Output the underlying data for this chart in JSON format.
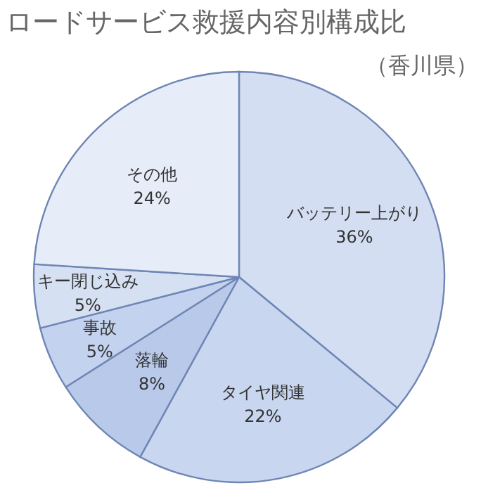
{
  "chart_data": {
    "type": "pie",
    "title": "ロードサービス救援内容別構成比",
    "subtitle": "（香川県）",
    "categories": [
      "バッテリー上がり",
      "タイヤ関連",
      "落輪",
      "事故",
      "キー閉じ込み",
      "その他"
    ],
    "values": [
      36,
      22,
      8,
      5,
      5,
      24
    ],
    "value_labels": [
      "36%",
      "22%",
      "8%",
      "5%",
      "5%",
      "24%"
    ],
    "colors": [
      "#d4def2",
      "#c9d6ef",
      "#b8c9ea",
      "#c3d2ee",
      "#d6e0f3",
      "#e6ecf8"
    ]
  }
}
